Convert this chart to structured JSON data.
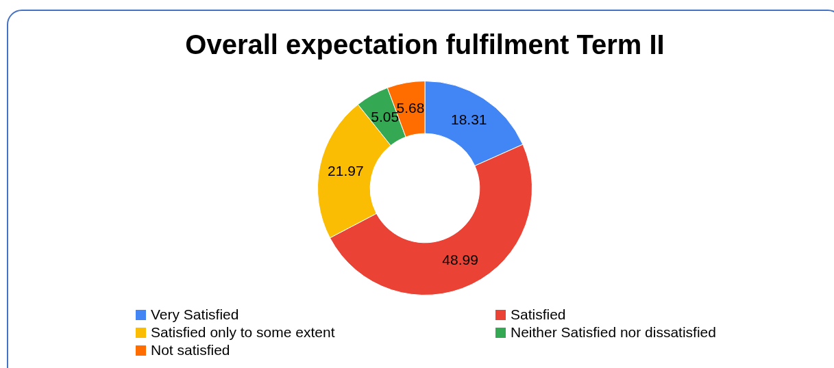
{
  "chart_data": {
    "type": "donut",
    "title": "Overall expectation fulfilment Term II",
    "categories": [
      "Very Satisfied",
      "Satisfied",
      "Satisfied only to some extent",
      "Neither Satisfied nor dissatisfied",
      "Not satisfied"
    ],
    "values": [
      18.31,
      48.99,
      21.97,
      5.05,
      5.68
    ],
    "colors": [
      "#4285f4",
      "#ea4335",
      "#fbbc04",
      "#34a853",
      "#ff6d01"
    ],
    "data_labels": true,
    "legend": "bottom"
  }
}
